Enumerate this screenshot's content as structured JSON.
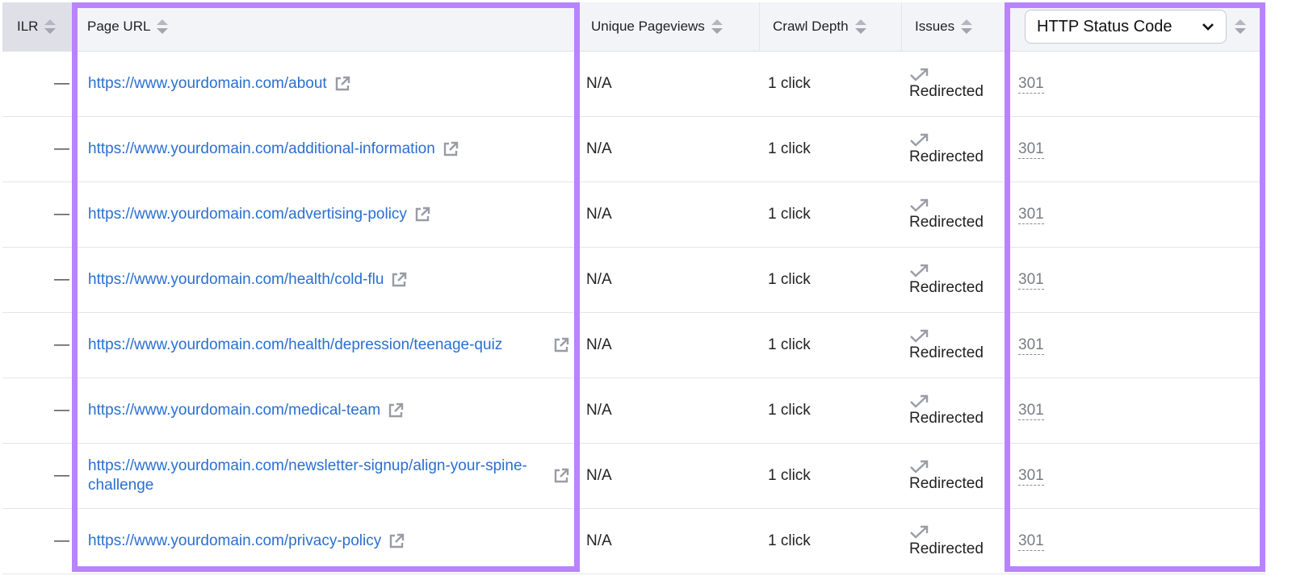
{
  "headers": {
    "ilr": "ILR",
    "page_url": "Page URL",
    "unique_pageviews": "Unique Pageviews",
    "crawl_depth": "Crawl Depth",
    "issues": "Issues",
    "status_select": "HTTP Status Code"
  },
  "colors": {
    "highlight": "#b983ff",
    "link": "#2a6fd0"
  },
  "rows": [
    {
      "ilr": "—",
      "url": "https://www.yourdomain.com/about",
      "pageviews": "N/A",
      "depth": "1 click",
      "issue": "Redirected",
      "code": "301"
    },
    {
      "ilr": "—",
      "url": "https://www.yourdomain.com/additional-information",
      "pageviews": "N/A",
      "depth": "1 click",
      "issue": "Redirected",
      "code": "301"
    },
    {
      "ilr": "—",
      "url": "https://www.yourdomain.com/advertising-policy",
      "pageviews": "N/A",
      "depth": "1 click",
      "issue": "Redirected",
      "code": "301"
    },
    {
      "ilr": "—",
      "url": "https://www.yourdomain.com/health/cold-flu",
      "pageviews": "N/A",
      "depth": "1 click",
      "issue": "Redirected",
      "code": "301"
    },
    {
      "ilr": "—",
      "url": "https://www.yourdomain.com/health/depression/teenage-quiz",
      "pageviews": "N/A",
      "depth": "1 click",
      "issue": "Redirected",
      "code": "301"
    },
    {
      "ilr": "—",
      "url": "https://www.yourdomain.com/medical-team",
      "pageviews": "N/A",
      "depth": "1 click",
      "issue": "Redirected",
      "code": "301"
    },
    {
      "ilr": "—",
      "url": "https://www.yourdomain.com/newsletter-signup/align-your-spine-challenge",
      "pageviews": "N/A",
      "depth": "1 click",
      "issue": "Redirected",
      "code": "301"
    },
    {
      "ilr": "—",
      "url": "https://www.yourdomain.com/privacy-policy",
      "pageviews": "N/A",
      "depth": "1 click",
      "issue": "Redirected",
      "code": "301"
    }
  ]
}
